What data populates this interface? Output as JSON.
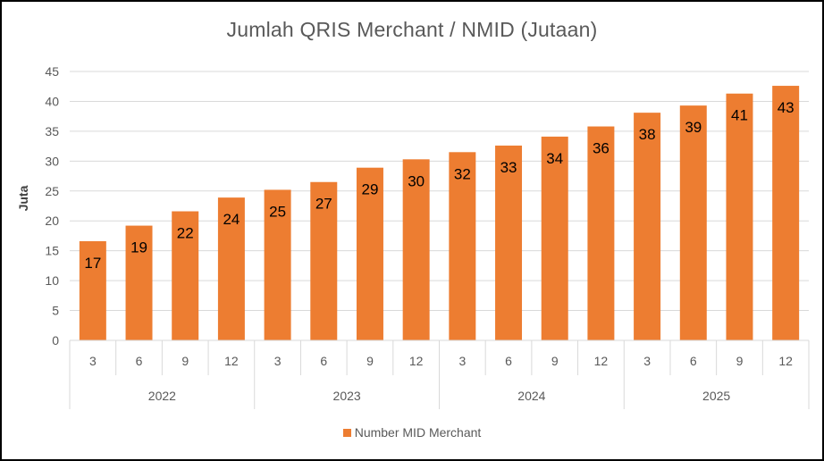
{
  "chart_data": {
    "type": "bar",
    "title": "Jumlah QRIS Merchant / NMID (Jutaan)",
    "ylabel": "Juta",
    "xlabel": "",
    "ylim": [
      0,
      45
    ],
    "yticks": [
      0,
      5,
      10,
      15,
      20,
      25,
      30,
      35,
      40,
      45
    ],
    "grid": true,
    "legend_position": "bottom",
    "bar_color": "#ED7D31",
    "categories": [
      "3",
      "6",
      "9",
      "12",
      "3",
      "6",
      "9",
      "12",
      "3",
      "6",
      "9",
      "12",
      "3",
      "6",
      "9",
      "12"
    ],
    "groups": [
      {
        "label": "2022",
        "size": 4
      },
      {
        "label": "2023",
        "size": 4
      },
      {
        "label": "2024",
        "size": 4
      },
      {
        "label": "2025",
        "size": 4
      }
    ],
    "series": [
      {
        "name": "Number MID Merchant",
        "values": [
          16.6,
          19.2,
          21.6,
          23.9,
          25.2,
          26.5,
          28.9,
          30.3,
          31.5,
          32.6,
          34.1,
          35.8,
          38.1,
          39.3,
          41.3,
          42.6
        ],
        "data_labels": [
          "17",
          "19",
          "22",
          "24",
          "25",
          "27",
          "29",
          "30",
          "32",
          "33",
          "34",
          "36",
          "38",
          "39",
          "41",
          "43"
        ]
      }
    ]
  }
}
